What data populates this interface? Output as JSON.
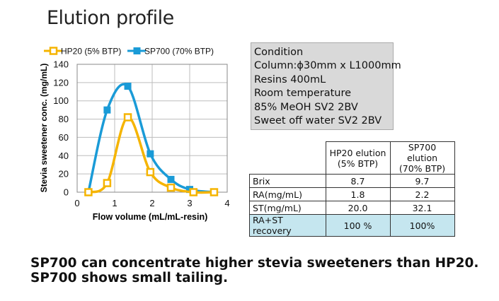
{
  "page_title": "Elution profile",
  "chart_data": {
    "type": "line",
    "title": "",
    "xlabel": "Flow volume (mL/mL-resin)",
    "ylabel": "Stevia sweetener conc. (mg/mL)",
    "xlim": [
      0,
      4
    ],
    "ylim": [
      0,
      140
    ],
    "xticks": [
      0,
      1,
      2,
      3,
      4
    ],
    "yticks": [
      0,
      20,
      40,
      60,
      80,
      100,
      120,
      140
    ],
    "grid": true,
    "legend_position": "top-left",
    "series": [
      {
        "name": "HP20 (5% BTP)",
        "color": "#f5b400",
        "marker": "square-open",
        "points": [
          [
            0.3,
            0
          ],
          [
            0.8,
            10
          ],
          [
            1.35,
            82
          ],
          [
            1.95,
            22
          ],
          [
            2.5,
            5
          ],
          [
            3.1,
            0
          ],
          [
            3.65,
            0
          ]
        ]
      },
      {
        "name": "SP700 (70% BTP)",
        "color": "#1a9bd7",
        "marker": "square-filled",
        "points": [
          [
            0.3,
            0
          ],
          [
            0.8,
            90
          ],
          [
            1.35,
            116
          ],
          [
            1.95,
            42
          ],
          [
            2.5,
            14
          ],
          [
            3.0,
            3
          ],
          [
            3.65,
            0
          ]
        ]
      }
    ]
  },
  "condition": {
    "lines": [
      "Condition",
      "Column:ϕ30mm x L1000mm",
      "Resins 400mL",
      "Room temperature",
      "85% MeOH SV2 2BV",
      "Sweet off water  SV2 2BV"
    ]
  },
  "results_table": {
    "headers": [
      [
        "HP20 elution",
        "(5% BTP)"
      ],
      [
        "SP700 elution",
        "(70% BTP)"
      ]
    ],
    "rows": [
      {
        "label": "Brix",
        "hp20": "8.7",
        "sp700": "9.7"
      },
      {
        "label": "RA(mg/mL)",
        "hp20": "1.8",
        "sp700": "2.2"
      },
      {
        "label": "ST(mg/mL)",
        "hp20": "20.0",
        "sp700": "32.1"
      },
      {
        "label": "RA+ST recovery",
        "hp20": "100 %",
        "sp700": "100%"
      }
    ]
  },
  "conclusions": [
    "SP700 can concentrate higher stevia sweeteners than HP20.",
    "SP700 shows small tailing."
  ]
}
